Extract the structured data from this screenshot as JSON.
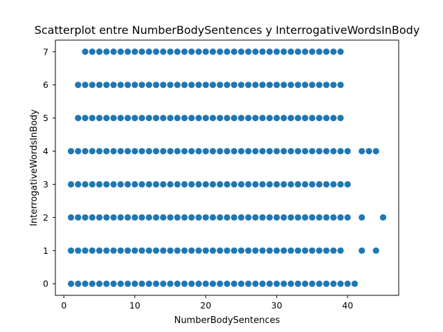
{
  "chart_data": {
    "type": "scatter",
    "title": "Scatterplot entre NumberBodySentences y InterrogativeWordsInBody",
    "xlabel": "NumberBodySentences",
    "ylabel": "InterrogativeWordsInBody",
    "xlim": [
      -1.2,
      47.2
    ],
    "ylim": [
      -0.35,
      7.35
    ],
    "xticks": [
      0,
      10,
      20,
      30,
      40
    ],
    "yticks": [
      0,
      1,
      2,
      3,
      4,
      5,
      6,
      7
    ],
    "marker_color": "#1f77b4",
    "grid": false,
    "legend": "none",
    "series": [
      {
        "points": {
          "0": [
            1,
            2,
            3,
            4,
            5,
            6,
            7,
            8,
            9,
            10,
            11,
            12,
            13,
            14,
            15,
            16,
            17,
            18,
            19,
            20,
            21,
            22,
            23,
            24,
            25,
            26,
            27,
            28,
            29,
            30,
            31,
            32,
            33,
            34,
            35,
            36,
            37,
            38,
            39,
            40,
            41
          ],
          "1": [
            1,
            2,
            3,
            4,
            5,
            6,
            7,
            8,
            9,
            10,
            11,
            12,
            13,
            14,
            15,
            16,
            17,
            18,
            19,
            20,
            21,
            22,
            23,
            24,
            25,
            26,
            27,
            28,
            29,
            30,
            31,
            32,
            33,
            34,
            35,
            36,
            37,
            38,
            39,
            42,
            44
          ],
          "2": [
            1,
            2,
            3,
            4,
            5,
            6,
            7,
            8,
            9,
            10,
            11,
            12,
            13,
            14,
            15,
            16,
            17,
            18,
            19,
            20,
            21,
            22,
            23,
            24,
            25,
            26,
            27,
            28,
            29,
            30,
            31,
            32,
            33,
            34,
            35,
            36,
            37,
            38,
            39,
            40,
            42,
            45
          ],
          "3": [
            1,
            2,
            3,
            4,
            5,
            6,
            7,
            8,
            9,
            10,
            11,
            12,
            13,
            14,
            15,
            16,
            17,
            18,
            19,
            20,
            21,
            22,
            23,
            24,
            25,
            26,
            27,
            28,
            29,
            30,
            31,
            32,
            33,
            34,
            35,
            36,
            37,
            38,
            39,
            40
          ],
          "4": [
            1,
            2,
            3,
            4,
            5,
            6,
            7,
            8,
            9,
            10,
            11,
            12,
            13,
            14,
            15,
            16,
            17,
            18,
            19,
            20,
            21,
            22,
            23,
            24,
            25,
            26,
            27,
            28,
            29,
            30,
            31,
            32,
            33,
            34,
            35,
            36,
            37,
            38,
            39,
            40,
            42,
            43,
            44
          ],
          "5": [
            2,
            3,
            4,
            5,
            6,
            7,
            8,
            9,
            10,
            11,
            12,
            13,
            14,
            15,
            16,
            17,
            18,
            19,
            20,
            21,
            22,
            23,
            24,
            25,
            26,
            27,
            28,
            29,
            30,
            31,
            32,
            33,
            34,
            35,
            36,
            37,
            38,
            39
          ],
          "6": [
            2,
            3,
            4,
            5,
            6,
            7,
            8,
            9,
            10,
            11,
            12,
            13,
            14,
            15,
            16,
            17,
            18,
            19,
            20,
            21,
            22,
            23,
            24,
            25,
            26,
            27,
            28,
            29,
            30,
            31,
            32,
            33,
            34,
            35,
            36,
            37,
            38,
            39
          ],
          "7": [
            3,
            4,
            5,
            6,
            7,
            8,
            9,
            10,
            11,
            12,
            13,
            14,
            15,
            16,
            17,
            18,
            19,
            20,
            21,
            22,
            23,
            24,
            25,
            26,
            27,
            28,
            29,
            30,
            31,
            32,
            33,
            34,
            35,
            36,
            37,
            38,
            39
          ]
        }
      }
    ]
  }
}
